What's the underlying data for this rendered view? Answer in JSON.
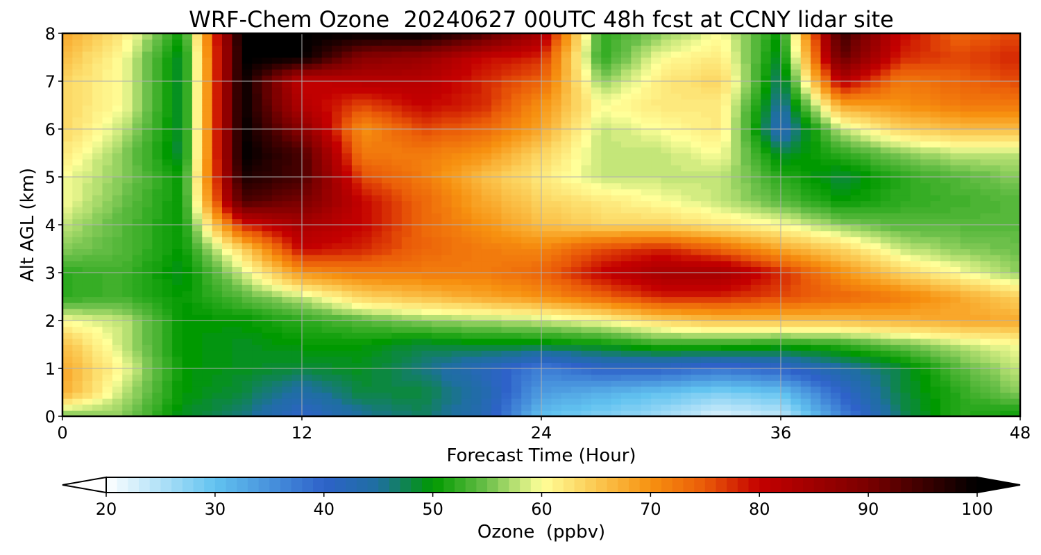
{
  "chart_data": {
    "type": "heatmap",
    "title": "WRF-Chem Ozone  20240627 00UTC 48h fcst at CCNY lidar site",
    "xlabel": "Forecast Time (Hour)",
    "ylabel": "Alt AGL (km)",
    "xlim": [
      0,
      48
    ],
    "ylim": [
      0,
      8
    ],
    "x_ticks": [
      "0",
      "12",
      "24",
      "36",
      "48"
    ],
    "y_ticks": [
      "0",
      "1",
      "2",
      "3",
      "4",
      "5",
      "6",
      "7",
      "8"
    ],
    "grid": true,
    "x_hours": [
      0,
      3,
      6,
      9,
      12,
      15,
      18,
      21,
      24,
      27,
      30,
      33,
      36,
      39,
      42,
      45,
      48
    ],
    "y_km": [
      0,
      0.5,
      1,
      1.5,
      2,
      2.5,
      3,
      3.5,
      4,
      4.5,
      5,
      5.5,
      6,
      6.5,
      7,
      7.5,
      8
    ],
    "ozone_ppbv": [
      [
        55,
        56,
        49,
        46,
        40,
        45,
        47,
        43,
        30,
        28,
        26,
        22,
        24,
        36,
        47,
        52,
        50
      ],
      [
        68,
        58,
        50,
        48,
        44,
        48,
        48,
        44,
        34,
        32,
        30,
        28,
        30,
        40,
        48,
        52,
        56
      ],
      [
        68,
        60,
        50,
        49,
        48,
        49,
        46,
        42,
        37,
        40,
        40,
        38,
        40,
        44,
        48,
        54,
        58
      ],
      [
        66,
        58,
        50,
        49,
        50,
        50,
        48,
        49,
        49,
        50,
        52,
        52,
        51,
        52,
        55,
        58,
        60
      ],
      [
        60,
        58,
        50,
        50,
        52,
        54,
        56,
        57,
        58,
        60,
        64,
        66,
        66,
        66,
        67,
        68,
        68
      ],
      [
        52,
        53,
        50,
        54,
        58,
        64,
        66,
        68,
        70,
        74,
        78,
        78,
        76,
        74,
        72,
        68,
        64
      ],
      [
        52,
        53,
        49,
        58,
        70,
        72,
        72,
        72,
        74,
        80,
        84,
        84,
        78,
        70,
        64,
        60,
        56
      ],
      [
        56,
        54,
        50,
        64,
        80,
        78,
        74,
        72,
        71,
        76,
        78,
        74,
        68,
        64,
        58,
        56,
        55
      ],
      [
        58,
        54,
        50,
        78,
        84,
        80,
        74,
        70,
        66,
        64,
        64,
        62,
        60,
        56,
        54,
        54,
        54
      ],
      [
        60,
        55,
        50,
        94,
        90,
        80,
        74,
        68,
        64,
        62,
        60,
        58,
        54,
        50,
        52,
        53,
        54
      ],
      [
        60,
        56,
        50,
        98,
        94,
        76,
        72,
        66,
        62,
        58,
        58,
        58,
        52,
        48,
        52,
        54,
        56
      ],
      [
        62,
        56,
        48,
        100,
        94,
        72,
        72,
        70,
        64,
        58,
        58,
        60,
        48,
        52,
        56,
        58,
        58
      ],
      [
        64,
        58,
        48,
        100,
        88,
        70,
        76,
        74,
        68,
        58,
        60,
        62,
        42,
        58,
        64,
        66,
        66
      ],
      [
        64,
        60,
        48,
        100,
        82,
        76,
        80,
        78,
        70,
        60,
        62,
        62,
        44,
        68,
        70,
        72,
        72
      ],
      [
        64,
        60,
        48,
        100,
        80,
        82,
        82,
        78,
        74,
        56,
        62,
        64,
        46,
        82,
        72,
        74,
        76
      ],
      [
        66,
        60,
        48,
        100,
        100,
        88,
        86,
        80,
        78,
        52,
        60,
        62,
        48,
        92,
        78,
        76,
        78
      ],
      [
        68,
        62,
        50,
        100,
        100,
        100,
        100,
        94,
        84,
        52,
        56,
        60,
        50,
        96,
        80,
        74,
        76
      ]
    ],
    "colorbar": {
      "label": "Ozone  (ppbv)",
      "min": 20,
      "max": 100,
      "extend": "both",
      "tick_labels": [
        "20",
        "30",
        "40",
        "50",
        "60",
        "70",
        "80",
        "90",
        "100"
      ],
      "color_stops": [
        {
          "value": 20,
          "color": "#ffffff"
        },
        {
          "value": 30,
          "color": "#62c3f0"
        },
        {
          "value": 40,
          "color": "#2e62c9"
        },
        {
          "value": 45,
          "color": "#1e6fa0"
        },
        {
          "value": 50,
          "color": "#009900"
        },
        {
          "value": 55,
          "color": "#6cc04a"
        },
        {
          "value": 60,
          "color": "#ffff99"
        },
        {
          "value": 65,
          "color": "#fbc952"
        },
        {
          "value": 70,
          "color": "#f79110"
        },
        {
          "value": 75,
          "color": "#ea5a08"
        },
        {
          "value": 80,
          "color": "#c40000"
        },
        {
          "value": 90,
          "color": "#7a0000"
        },
        {
          "value": 100,
          "color": "#000000"
        }
      ]
    }
  }
}
